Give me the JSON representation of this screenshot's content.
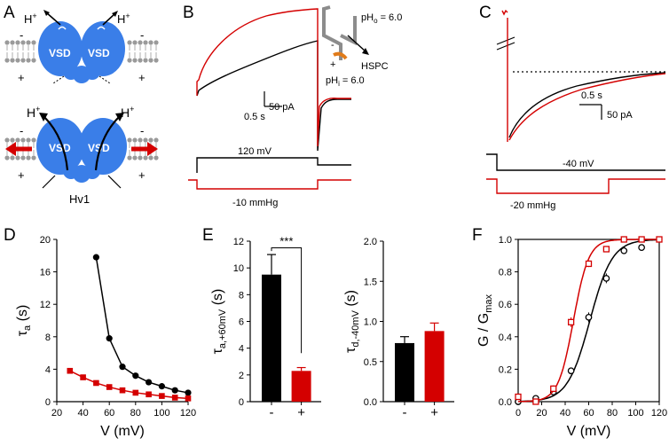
{
  "figure": {
    "panel_labels": [
      "A",
      "B",
      "C",
      "D",
      "E",
      "F"
    ],
    "colors": {
      "black": "#000000",
      "red": "#d40000",
      "vsd_blue": "#3a7ee8",
      "lipid": "#9a9a9a",
      "probe_orange": "#e07b1a",
      "probe_gray": "#8c8c8c"
    }
  },
  "panel_a": {
    "vsd_label": "VSD",
    "proton": "H",
    "plus": "+",
    "minus": "-",
    "channel_name": "Hv1"
  },
  "panel_b": {
    "inset_ph_out": "pH",
    "inset_ph_out_sub": "o",
    "inset_ph_out_val": " = 6.0",
    "inset_ph_in": "pH",
    "inset_ph_in_sub": "i",
    "inset_ph_in_val": " = 6.0",
    "inset_lipid": "HSPC",
    "scale_current": "50 pA",
    "scale_time": "0.5 s",
    "voltage_label": "120 mV",
    "pressure_label": "-10 mmHg"
  },
  "panel_c": {
    "scale_time": "0.5 s",
    "scale_current": "50 pA",
    "voltage_label": "-40 mV",
    "pressure_label": "-20 mmHg"
  },
  "chart_data": [
    {
      "panel": "D",
      "type": "line",
      "xlabel": "V (mV)",
      "ylabel_main": "τ",
      "ylabel_sub": "a",
      "ylabel_unit": " (s)",
      "xlim": [
        20,
        120
      ],
      "ylim": [
        0,
        20
      ],
      "xticks": [
        20,
        40,
        60,
        80,
        100,
        120
      ],
      "yticks": [
        0,
        4,
        8,
        12,
        16,
        20
      ],
      "series": [
        {
          "color": "#000000",
          "marker": "circle",
          "x": [
            50,
            60,
            70,
            80,
            90,
            100,
            110,
            120
          ],
          "y": [
            17.8,
            7.8,
            4.3,
            3.2,
            2.4,
            1.9,
            1.4,
            1.1
          ]
        },
        {
          "color": "#d40000",
          "marker": "square",
          "x": [
            30,
            40,
            50,
            60,
            70,
            80,
            90,
            100,
            110,
            120
          ],
          "y": [
            3.8,
            3.0,
            2.3,
            1.8,
            1.4,
            1.1,
            0.9,
            0.7,
            0.5,
            0.4
          ]
        }
      ]
    },
    {
      "panel": "E-left",
      "type": "bar",
      "categories": [
        "-",
        "+"
      ],
      "values": [
        9.5,
        2.3
      ],
      "errors": [
        1.5,
        0.25
      ],
      "colors": [
        "#000000",
        "#d40000"
      ],
      "ylabel_main": "τ",
      "ylabel_sub": "a,+60mV",
      "ylabel_unit": " (s)",
      "ylim": [
        0,
        12
      ],
      "yticks": [
        0,
        2,
        4,
        6,
        8,
        10,
        12
      ],
      "significance": "***"
    },
    {
      "panel": "E-right",
      "type": "bar",
      "categories": [
        "-",
        "+"
      ],
      "values": [
        0.73,
        0.88
      ],
      "errors": [
        0.08,
        0.1
      ],
      "colors": [
        "#000000",
        "#d40000"
      ],
      "ylabel_main": "τ",
      "ylabel_sub": "d,-40mV",
      "ylabel_unit": " (s)",
      "ylim": [
        0,
        2.0
      ],
      "yticks": [
        0.0,
        0.5,
        1.0,
        1.5,
        2.0
      ]
    },
    {
      "panel": "F",
      "type": "scatter",
      "xlabel": "V (mV)",
      "ylabel_main": "G / G",
      "ylabel_sub": "max",
      "xlim": [
        0,
        120
      ],
      "ylim": [
        0,
        1.0
      ],
      "xticks": [
        0,
        20,
        40,
        60,
        80,
        100,
        120
      ],
      "yticks": [
        0.0,
        0.2,
        0.4,
        0.6,
        0.8,
        1.0
      ],
      "series": [
        {
          "color": "#000000",
          "marker": "circle",
          "x": [
            0,
            15,
            30,
            45,
            60,
            75,
            90,
            105
          ],
          "y": [
            0.0,
            0.02,
            0.06,
            0.19,
            0.52,
            0.76,
            0.93,
            0.95
          ],
          "errors": [
            0.02,
            0.01,
            0.02,
            0.02,
            0.03,
            0.03,
            0.02,
            0.02
          ],
          "fit": {
            "v_half": 61,
            "slope": 9.5
          }
        },
        {
          "color": "#d40000",
          "marker": "square",
          "x": [
            0,
            15,
            30,
            45,
            60,
            75,
            90,
            105,
            120
          ],
          "y": [
            0.03,
            0.0,
            0.08,
            0.49,
            0.85,
            0.94,
            1.0,
            1.0,
            1.0
          ],
          "errors": [
            0.02,
            0.01,
            0.02,
            0.03,
            0.02,
            0.01,
            0.01,
            0.01,
            0.01
          ],
          "fit": {
            "v_half": 47,
            "slope": 6.5
          }
        }
      ]
    }
  ]
}
